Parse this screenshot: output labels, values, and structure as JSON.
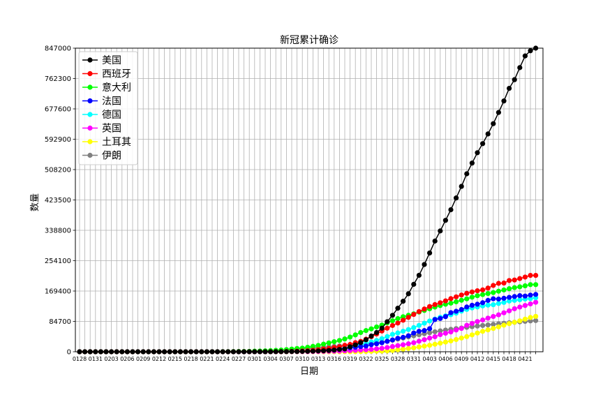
{
  "chart_data": {
    "type": "line",
    "title": "新冠累计确诊",
    "xlabel": "日期",
    "ylabel": "数量",
    "grid": true,
    "legend_position": "top-left",
    "ylim": [
      0,
      847000
    ],
    "yticks": [
      0,
      84700,
      169400,
      254100,
      338800,
      423500,
      508200,
      592900,
      677600,
      762300,
      847000
    ],
    "x_tick_labels": [
      "0128",
      "0131",
      "0203",
      "0206",
      "0209",
      "0212",
      "0215",
      "0218",
      "0221",
      "0224",
      "0227",
      "0301",
      "0304",
      "0307",
      "0310",
      "0313",
      "0316",
      "0319",
      "0322",
      "0325",
      "0328",
      "0331",
      "0403",
      "0406",
      "0409",
      "0412",
      "0415",
      "0418",
      "0421"
    ],
    "x": [
      "0128",
      "0129",
      "0130",
      "0131",
      "0201",
      "0202",
      "0203",
      "0204",
      "0205",
      "0206",
      "0207",
      "0208",
      "0209",
      "0210",
      "0211",
      "0212",
      "0213",
      "0214",
      "0215",
      "0216",
      "0217",
      "0218",
      "0219",
      "0220",
      "0221",
      "0222",
      "0223",
      "0224",
      "0225",
      "0226",
      "0227",
      "0228",
      "0229",
      "0301",
      "0302",
      "0303",
      "0304",
      "0305",
      "0306",
      "0307",
      "0308",
      "0309",
      "0310",
      "0311",
      "0312",
      "0313",
      "0314",
      "0315",
      "0316",
      "0317",
      "0318",
      "0319",
      "0320",
      "0321",
      "0322",
      "0323",
      "0324",
      "0325",
      "0326",
      "0327",
      "0328",
      "0329",
      "0330",
      "0331",
      "0401",
      "0402",
      "0403",
      "0404",
      "0405",
      "0406",
      "0407",
      "0408",
      "0409",
      "0410",
      "0411",
      "0412",
      "0413",
      "0414",
      "0415",
      "0416",
      "0417",
      "0418",
      "0419",
      "0420",
      "0421",
      "0422",
      "0423"
    ],
    "series": [
      {
        "name": "美国",
        "color": "#000000",
        "values": [
          5,
          5,
          6,
          6,
          8,
          8,
          11,
          11,
          12,
          12,
          12,
          12,
          12,
          13,
          13,
          14,
          15,
          15,
          15,
          15,
          15,
          15,
          15,
          15,
          35,
          35,
          35,
          53,
          53,
          59,
          60,
          62,
          70,
          74,
          98,
          118,
          149,
          217,
          262,
          402,
          518,
          583,
          959,
          1281,
          1663,
          2179,
          2726,
          3499,
          4632,
          6421,
          7786,
          13680,
          19101,
          25493,
          33276,
          43847,
          53740,
          65778,
          83836,
          101657,
          121478,
          140886,
          161807,
          188172,
          213372,
          243453,
          275586,
          308850,
          337072,
          366667,
          396223,
          429052,
          461437,
          496535,
          526396,
          555313,
          580619,
          607670,
          636350,
          667592,
          699706,
          734969,
          759086,
          792759,
          825306,
          839675,
          847000
        ]
      },
      {
        "name": "西班牙",
        "color": "#ff0000",
        "values": [
          0,
          0,
          0,
          0,
          1,
          1,
          1,
          1,
          1,
          1,
          1,
          1,
          2,
          2,
          2,
          2,
          2,
          2,
          2,
          2,
          2,
          2,
          2,
          2,
          2,
          2,
          2,
          2,
          2,
          7,
          18,
          30,
          63,
          102,
          149,
          164,
          214,
          260,
          373,
          589,
          999,
          1622,
          2128,
          2950,
          4209,
          5753,
          7753,
          9191,
          11748,
          13910,
          17963,
          20410,
          25374,
          28768,
          35136,
          42058,
          49515,
          57786,
          65719,
          73235,
          80110,
          87956,
          95923,
          104118,
          112065,
          119199,
          126168,
          131646,
          136675,
          141942,
          148220,
          153222,
          158273,
          163027,
          166831,
          170099,
          172541,
          177644,
          184948,
          190839,
          191726,
          198674,
          200210,
          204178,
          208389,
          213024,
          213024
        ]
      },
      {
        "name": "意大利",
        "color": "#00ff00",
        "values": [
          0,
          0,
          0,
          2,
          2,
          2,
          2,
          2,
          2,
          3,
          3,
          3,
          3,
          3,
          3,
          3,
          3,
          3,
          3,
          3,
          3,
          3,
          3,
          3,
          20,
          62,
          155,
          229,
          322,
          453,
          655,
          888,
          1128,
          1694,
          2036,
          2502,
          3089,
          3858,
          4636,
          5883,
          7375,
          9172,
          10149,
          12462,
          15113,
          17660,
          21157,
          24747,
          27980,
          31506,
          35713,
          41035,
          47021,
          53578,
          59138,
          63927,
          69176,
          74386,
          80589,
          86498,
          92472,
          97689,
          101739,
          105792,
          110574,
          115242,
          119827,
          124632,
          128948,
          132547,
          135586,
          139422,
          143626,
          147577,
          152271,
          156363,
          159516,
          162488,
          165155,
          168941,
          172434,
          175925,
          178972,
          181228,
          183957,
          187327,
          187327
        ]
      },
      {
        "name": "法国",
        "color": "#0000ff",
        "values": [
          4,
          5,
          5,
          6,
          6,
          6,
          6,
          6,
          6,
          6,
          11,
          11,
          11,
          11,
          11,
          11,
          11,
          11,
          12,
          12,
          12,
          12,
          12,
          12,
          12,
          12,
          12,
          12,
          14,
          18,
          38,
          57,
          100,
          130,
          191,
          212,
          285,
          423,
          653,
          949,
          1126,
          1209,
          1784,
          2281,
          2876,
          3661,
          4499,
          5423,
          6633,
          7730,
          9134,
          10995,
          12612,
          14459,
          16018,
          19856,
          22302,
          25233,
          29155,
          32964,
          37575,
          40174,
          44550,
          52128,
          56989,
          59105,
          64338,
          89953,
          92839,
          98010,
          109069,
          112950,
          117749,
          124869,
          129654,
          132591,
          136779,
          143303,
          147863,
          147091,
          149130,
          151793,
          154097,
          156480,
          155383,
          158050,
          159877
        ]
      },
      {
        "name": "德国",
        "color": "#00ffff",
        "values": [
          4,
          4,
          4,
          5,
          8,
          10,
          12,
          12,
          12,
          12,
          13,
          13,
          14,
          14,
          16,
          16,
          16,
          16,
          16,
          16,
          16,
          16,
          16,
          16,
          16,
          16,
          16,
          16,
          18,
          26,
          53,
          66,
          117,
          150,
          188,
          240,
          400,
          639,
          795,
          902,
          1139,
          1296,
          1567,
          2369,
          3062,
          3795,
          4838,
          6012,
          7156,
          8198,
          10999,
          13957,
          16662,
          18610,
          22672,
          27436,
          31554,
          36508,
          42288,
          48582,
          52547,
          57298,
          61913,
          67366,
          73522,
          79696,
          85778,
          91159,
          96092,
          100123,
          103374,
          107663,
          113296,
          118181,
          122171,
          124908,
          127854,
          130072,
          131359,
          134753,
          137698,
          141397,
          143342,
          145184,
          147065,
          148291,
          150648
        ]
      },
      {
        "name": "英国",
        "color": "#ff00ff",
        "values": [
          0,
          0,
          0,
          2,
          2,
          2,
          2,
          2,
          3,
          3,
          3,
          3,
          8,
          8,
          8,
          9,
          9,
          9,
          9,
          9,
          9,
          9,
          9,
          9,
          9,
          9,
          9,
          13,
          13,
          13,
          15,
          20,
          23,
          36,
          40,
          51,
          85,
          115,
          163,
          206,
          273,
          321,
          373,
          456,
          590,
          798,
          1140,
          1391,
          1543,
          1950,
          2626,
          3269,
          3983,
          5018,
          5683,
          6650,
          8077,
          9529,
          11658,
          14543,
          17089,
          19522,
          22141,
          25150,
          29474,
          33718,
          38168,
          41903,
          47806,
          51608,
          55242,
          60733,
          65077,
          73758,
          78991,
          84279,
          88621,
          93873,
          98476,
          103093,
          108692,
          114217,
          120067,
          124743,
          129044,
          133495,
          138078
        ]
      },
      {
        "name": "土耳其",
        "color": "#ffff00",
        "values": [
          0,
          0,
          0,
          0,
          0,
          0,
          0,
          0,
          0,
          0,
          0,
          0,
          0,
          0,
          0,
          0,
          0,
          0,
          0,
          0,
          0,
          0,
          0,
          0,
          0,
          0,
          0,
          0,
          0,
          0,
          0,
          0,
          0,
          0,
          0,
          0,
          0,
          0,
          0,
          0,
          0,
          0,
          0,
          1,
          1,
          5,
          5,
          6,
          18,
          47,
          98,
          191,
          359,
          670,
          947,
          1236,
          1529,
          1872,
          2433,
          3629,
          5698,
          7402,
          9217,
          10827,
          13531,
          15679,
          18135,
          20921,
          23934,
          27069,
          30217,
          34109,
          38226,
          42282,
          47029,
          52167,
          56956,
          61049,
          65111,
          69392,
          74193,
          78546,
          82329,
          86306,
          90980,
          95591,
          98674
        ]
      },
      {
        "name": "伊朗",
        "color": "#808080",
        "values": [
          0,
          0,
          0,
          0,
          0,
          0,
          0,
          0,
          0,
          0,
          0,
          0,
          0,
          0,
          0,
          0,
          0,
          0,
          0,
          0,
          0,
          0,
          2,
          5,
          18,
          28,
          43,
          61,
          95,
          139,
          245,
          388,
          593,
          978,
          1501,
          2336,
          2922,
          3513,
          4747,
          5823,
          6566,
          7161,
          8042,
          9000,
          10075,
          11364,
          12729,
          13938,
          14991,
          16169,
          17361,
          18407,
          19644,
          20610,
          21638,
          23049,
          24811,
          27017,
          29406,
          32332,
          35408,
          38309,
          41495,
          44605,
          47593,
          50468,
          53183,
          55743,
          58226,
          60500,
          62589,
          64586,
          66220,
          68192,
          70029,
          71686,
          73303,
          74877,
          76389,
          77995,
          79494,
          80868,
          82211,
          83505,
          84802,
          85996,
          87026
        ]
      }
    ]
  }
}
